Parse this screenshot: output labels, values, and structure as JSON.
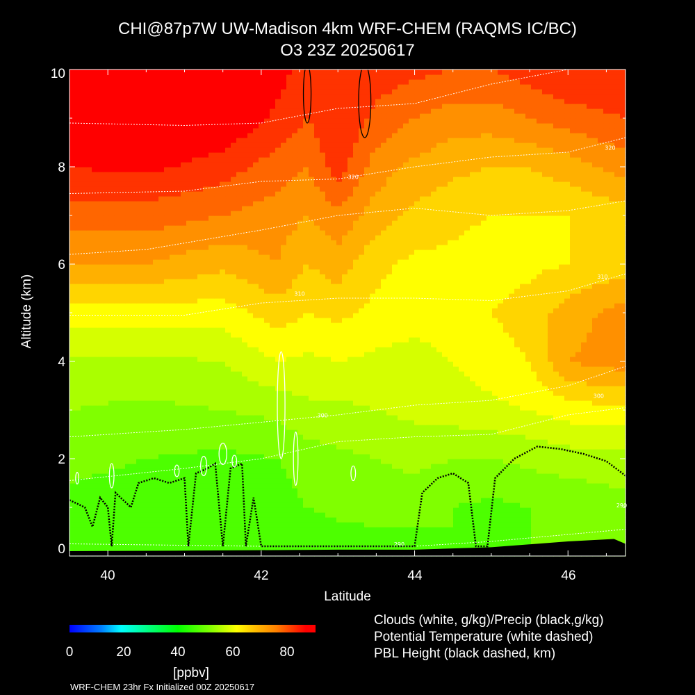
{
  "chart_data": {
    "type": "heatmap",
    "title": "CHI@87p7W UW-Madison 4km WRF-CHEM (RAQMS IC/BC)",
    "subtitle": "O3 23Z 20250617",
    "xlabel": "Latitude",
    "ylabel": "Altitude (km)",
    "xlim": [
      39.5,
      46.75
    ],
    "ylim": [
      0,
      10
    ],
    "xticks": [
      "40",
      "42",
      "44",
      "46"
    ],
    "yticks": [
      "0",
      "2",
      "4",
      "6",
      "8",
      "10"
    ],
    "colorbar": {
      "range": [
        0,
        90
      ],
      "ticks": [
        "0",
        "20",
        "40",
        "60",
        "80"
      ],
      "unit": "[ppbv]",
      "colors": [
        "#0000ff",
        "#00ffff",
        "#00ff00",
        "#ffff00",
        "#ff8000",
        "#ff0000"
      ]
    },
    "isentropes": [
      {
        "label": "290",
        "lat": 43.8,
        "alt": 0.2
      },
      {
        "label": "300",
        "lat": 42.8,
        "alt": 2.85
      },
      {
        "label": "300",
        "lat": 46.4,
        "alt": 3.25
      },
      {
        "label": "310",
        "lat": 42.5,
        "alt": 5.35
      },
      {
        "label": "310",
        "lat": 46.45,
        "alt": 5.7
      },
      {
        "label": "320",
        "lat": 43.2,
        "alt": 7.75
      },
      {
        "label": "320",
        "lat": 46.55,
        "alt": 8.35
      },
      {
        "label": "290",
        "lat": 46.7,
        "alt": 1.0
      }
    ],
    "ozone_field_description_values": {
      "lats": [
        39.5,
        40.5,
        41.5,
        42.2,
        42.6,
        43.0,
        43.5,
        44.0,
        44.5,
        45.0,
        45.5,
        46.0,
        46.75
      ],
      "alts": [
        0,
        1,
        2,
        3,
        4,
        5,
        6,
        7,
        8,
        9,
        10
      ],
      "o3_ppbv": [
        [
          45,
          45,
          45,
          45,
          45,
          45,
          45,
          45,
          48,
          48,
          48,
          48,
          50
        ],
        [
          47,
          46,
          45,
          46,
          48,
          49,
          50,
          50,
          48,
          47,
          48,
          49,
          51
        ],
        [
          49,
          48,
          47,
          48,
          50,
          51,
          52,
          53,
          52,
          52,
          53,
          54,
          54
        ],
        [
          52,
          51,
          52,
          53,
          55,
          55,
          56,
          57,
          58,
          59,
          60,
          62,
          63
        ],
        [
          55,
          55,
          56,
          60,
          59,
          60,
          59,
          58,
          60,
          62,
          64,
          72,
          74
        ],
        [
          62,
          62,
          62,
          66,
          64,
          65,
          63,
          62,
          63,
          64,
          66,
          70,
          74
        ],
        [
          72,
          72,
          69,
          72,
          68,
          70,
          65,
          63,
          63,
          62,
          63,
          64,
          66
        ],
        [
          78,
          78,
          76,
          74,
          72,
          75,
          70,
          67,
          65,
          64,
          64,
          64,
          66
        ],
        [
          84,
          85,
          82,
          78,
          76,
          82,
          74,
          71,
          69,
          68,
          68,
          70,
          74
        ],
        [
          87,
          89,
          88,
          83,
          80,
          84,
          79,
          76,
          74,
          74,
          76,
          78,
          80
        ],
        [
          86,
          90,
          90,
          86,
          82,
          84,
          82,
          81,
          80,
          80,
          82,
          84,
          84
        ]
      ]
    },
    "legend": [
      "Clouds (white, g/kg)/Precip (black,g/kg)",
      "Potential Temperature (white dashed)",
      "PBL Height (black dashed, km)"
    ],
    "footer": "WRF-CHEM 23hr  Fx Initialized 00Z 20250617"
  }
}
